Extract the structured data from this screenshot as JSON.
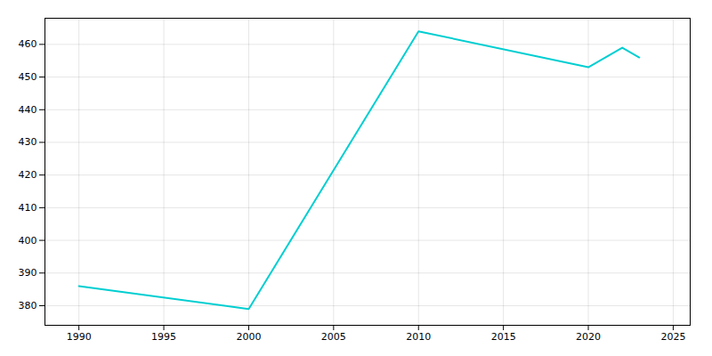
{
  "chart_data": {
    "type": "line",
    "x": [
      1990,
      2000,
      2010,
      2020,
      2022,
      2023
    ],
    "values": [
      386,
      379,
      464,
      453,
      459,
      456
    ],
    "color": "#00CED1",
    "xlim": [
      1988,
      2026
    ],
    "xticks": [
      1990,
      1995,
      2000,
      2005,
      2010,
      2015,
      2020,
      2025
    ],
    "ylim": [
      374,
      468
    ],
    "yticks": [
      380,
      390,
      400,
      410,
      420,
      430,
      440,
      450,
      460
    ],
    "grid": true
  }
}
